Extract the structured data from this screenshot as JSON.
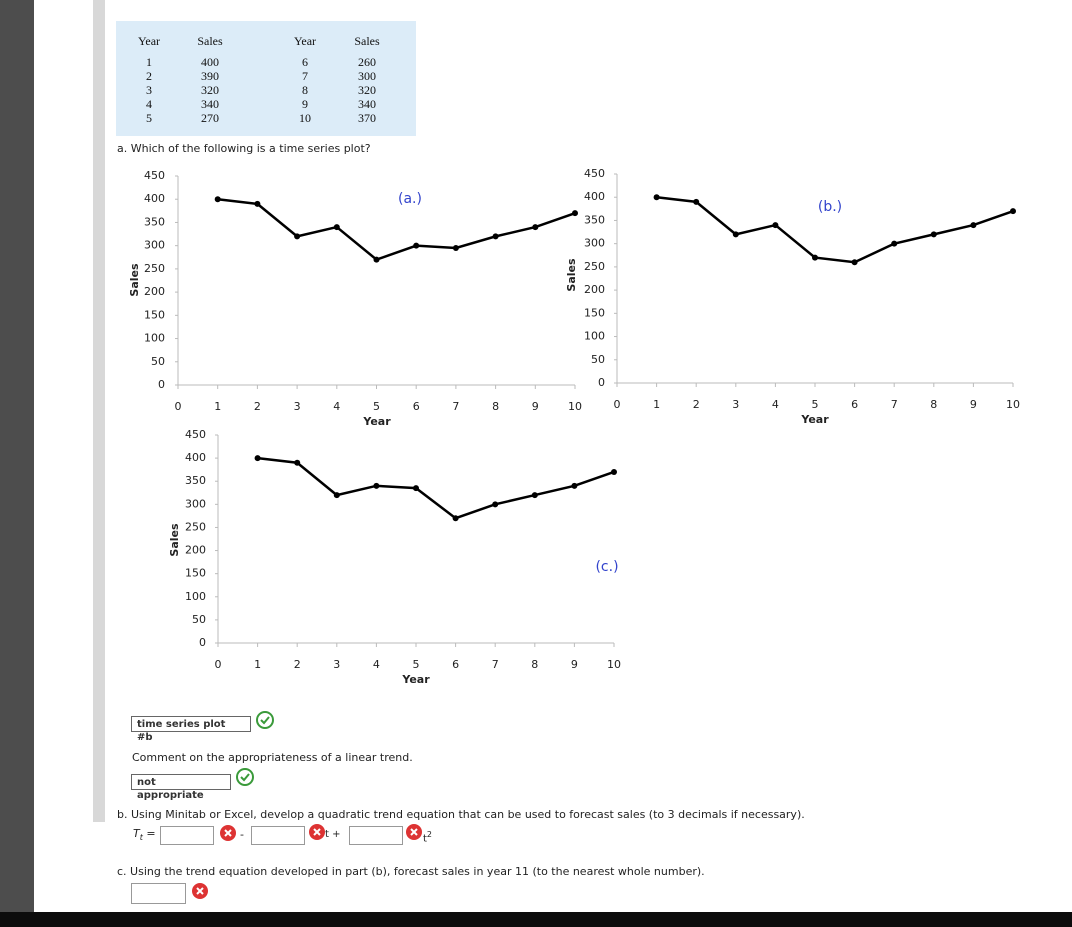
{
  "table": {
    "headers": [
      "Year",
      "Sales",
      "Year",
      "Sales"
    ],
    "rows": [
      [
        1,
        400,
        6,
        260
      ],
      [
        2,
        390,
        7,
        300
      ],
      [
        3,
        320,
        8,
        320
      ],
      [
        4,
        340,
        9,
        340
      ],
      [
        5,
        270,
        10,
        370
      ]
    ]
  },
  "question_a": "a. Which of the following is a time series plot?",
  "chart_data": [
    {
      "type": "line",
      "annotation": "(a.)",
      "annotation_color": "#3344cc",
      "x_label": "Year",
      "y_label": "Sales",
      "x": [
        1,
        2,
        3,
        4,
        5,
        6,
        7,
        8,
        9,
        10
      ],
      "series": [
        {
          "color": "#000000",
          "values": [
            400,
            390,
            320,
            340,
            270,
            300,
            295,
            320,
            340,
            370
          ]
        }
      ],
      "xlim": [
        0,
        10
      ],
      "ylim": [
        0,
        450
      ],
      "xticks": [
        0,
        1,
        2,
        3,
        4,
        5,
        6,
        7,
        8,
        9,
        10
      ],
      "yticks": [
        0,
        50,
        100,
        150,
        200,
        250,
        300,
        350,
        400,
        450
      ]
    },
    {
      "type": "line",
      "annotation": "(b.)",
      "annotation_color": "#3344cc",
      "x_label": "Year",
      "y_label": "Sales",
      "x": [
        1,
        2,
        3,
        4,
        5,
        6,
        7,
        8,
        9,
        10
      ],
      "series": [
        {
          "color": "#000000",
          "values": [
            400,
            390,
            320,
            340,
            270,
            260,
            300,
            320,
            340,
            370
          ]
        }
      ],
      "xlim": [
        0,
        10
      ],
      "ylim": [
        0,
        450
      ],
      "xticks": [
        0,
        1,
        2,
        3,
        4,
        5,
        6,
        7,
        8,
        9,
        10
      ],
      "yticks": [
        0,
        50,
        100,
        150,
        200,
        250,
        300,
        350,
        400,
        450
      ]
    },
    {
      "type": "line",
      "annotation": "(c.)",
      "annotation_color": "#3344cc",
      "x_label": "Year",
      "y_label": "Sales",
      "x": [
        1,
        2,
        3,
        4,
        5,
        6,
        7,
        8,
        9,
        10
      ],
      "series": [
        {
          "color": "#000000",
          "values": [
            400,
            390,
            320,
            340,
            335,
            270,
            300,
            320,
            340,
            370
          ]
        }
      ],
      "xlim": [
        0,
        10
      ],
      "ylim": [
        0,
        450
      ],
      "xticks": [
        0,
        1,
        2,
        3,
        4,
        5,
        6,
        7,
        8,
        9,
        10
      ],
      "yticks": [
        0,
        50,
        100,
        150,
        200,
        250,
        300,
        350,
        400,
        450
      ]
    }
  ],
  "answer_a": "time series plot #b",
  "comment_prompt": "Comment on the appropriateness of a linear trend.",
  "answer_comment": "not appropriate",
  "question_b": "b. Using Minitab or Excel, develop a quadratic trend equation that can be used to forecast sales (to 3 decimals if necessary).",
  "equation": {
    "lhs": "T",
    "lhs_sub": "t",
    "eq": "=",
    "minus": "-",
    "t_plus": "t +",
    "t2": "t",
    "t2_sup": "2"
  },
  "question_c": "c. Using the trend equation developed in part (b), forecast sales in year 11 (to the nearest whole number)."
}
